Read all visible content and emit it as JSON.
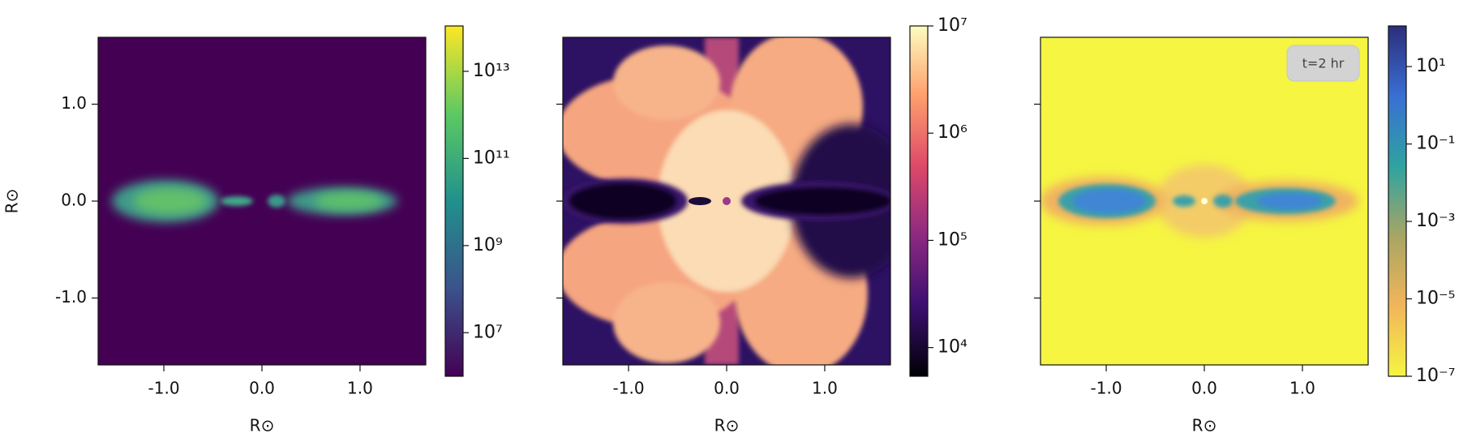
{
  "chart_data": [
    {
      "type": "image",
      "xlim": [
        -1.67,
        1.67
      ],
      "ylim": [
        -1.69,
        1.69
      ],
      "xticks": [
        {
          "value": -1,
          "label": "-1.0"
        },
        {
          "value": 0,
          "label": "0.0"
        },
        {
          "value": 1,
          "label": "1.0"
        }
      ],
      "yticks": [
        {
          "value": -1,
          "label": "-1.0"
        },
        {
          "value": 0,
          "label": "0.0"
        },
        {
          "value": 1,
          "label": "1.0"
        }
      ],
      "xlabel": "R⊙",
      "ylabel": "R⊙",
      "colorbar": {
        "scale": "log",
        "lim": [
          1000000,
          110000000000000
        ],
        "ticks": [
          {
            "value": 10000000,
            "label": "10⁷"
          },
          {
            "value": 1000000000,
            "label": "10⁹"
          },
          {
            "value": 100000000000,
            "label": "10¹¹"
          },
          {
            "value": 10000000000000,
            "label": "10¹³"
          }
        ],
        "colors": [
          "#440154",
          "#3b528b",
          "#21908d",
          "#5dc963",
          "#fde725"
        ]
      }
    },
    {
      "type": "image",
      "xlim": [
        -1.67,
        1.67
      ],
      "ylim": [
        -1.69,
        1.69
      ],
      "xticks": [
        {
          "value": -1,
          "label": "-1.0"
        },
        {
          "value": 0,
          "label": "0.0"
        },
        {
          "value": 1,
          "label": "1.0"
        }
      ],
      "yticks": [
        -1,
        0,
        1
      ],
      "xlabel": "R⊙",
      "colorbar": {
        "scale": "log",
        "lim": [
          5400,
          10000000
        ],
        "ticks": [
          {
            "value": 10000,
            "label": "10⁴"
          },
          {
            "value": 100000,
            "label": "10⁵"
          },
          {
            "value": 1000000,
            "label": "10⁶"
          },
          {
            "value": 10000000,
            "label": "10⁷"
          }
        ],
        "colors": [
          "#000004",
          "#3b0f70",
          "#8c2981",
          "#de4968",
          "#fe9f6d",
          "#fcfdbf"
        ]
      }
    },
    {
      "type": "image",
      "xlim": [
        -1.67,
        1.67
      ],
      "ylim": [
        -1.69,
        1.69
      ],
      "xticks": [
        {
          "value": -1,
          "label": "-1.0"
        },
        {
          "value": 0,
          "label": "0.0"
        },
        {
          "value": 1,
          "label": "1.0"
        }
      ],
      "yticks": [
        -1,
        0,
        1
      ],
      "xlabel": "R⊙",
      "annotation": "t=2 hr",
      "colorbar": {
        "scale": "log",
        "lim": [
          1e-07,
          112
        ],
        "ticks": [
          {
            "value": 1e-07,
            "label": "10⁻⁷"
          },
          {
            "value": 1e-05,
            "label": "10⁻⁵"
          },
          {
            "value": 0.001,
            "label": "10⁻³"
          },
          {
            "value": 0.1,
            "label": "10⁻¹"
          },
          {
            "value": 10,
            "label": "10¹"
          }
        ],
        "colors": [
          "#f5f542",
          "#f2b55a",
          "#a8a564",
          "#2ea3a0",
          "#3a6fd4",
          "#2b2e7a"
        ]
      }
    }
  ]
}
